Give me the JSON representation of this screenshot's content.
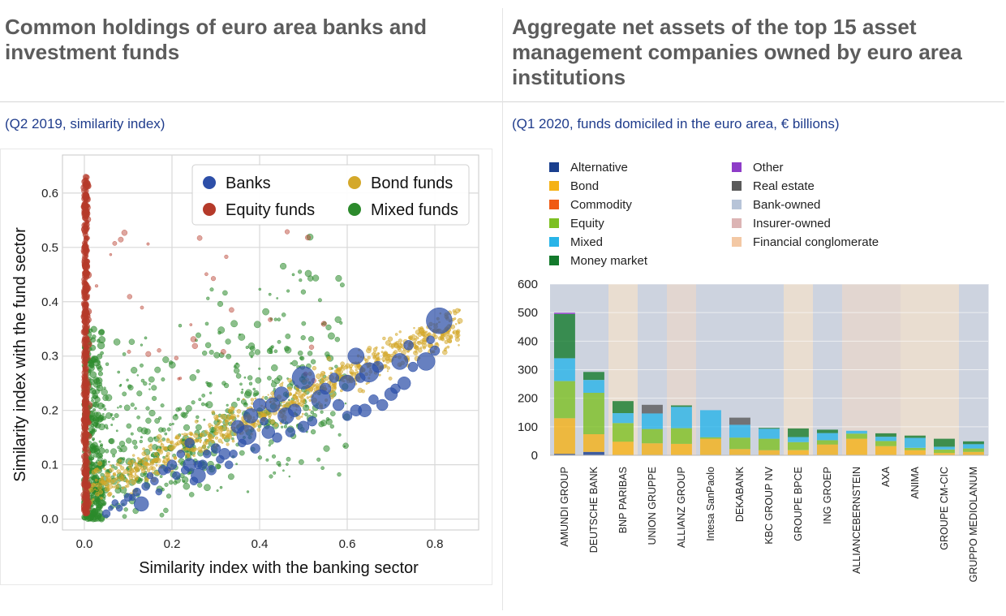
{
  "left": {
    "title": "Common holdings of euro area banks and investment funds",
    "subtitle": "(Q2 2019, similarity index)"
  },
  "right": {
    "title": "Aggregate net assets of the top 15 asset management companies owned by euro area institutions",
    "subtitle": "(Q1 2020, funds domiciled in the euro area, € billions)"
  },
  "chart_data": [
    {
      "type": "scatter",
      "xlabel": "Similarity index with the banking sector",
      "ylabel": "Similarity index with the fund sector",
      "xlim": [
        -0.05,
        0.9
      ],
      "ylim": [
        -0.02,
        0.67
      ],
      "xticks": [
        0.0,
        0.2,
        0.4,
        0.6,
        0.8
      ],
      "yticks": [
        0.0,
        0.1,
        0.2,
        0.3,
        0.4,
        0.5,
        0.6
      ],
      "grid": true,
      "legend_position": "top-right",
      "series": [
        {
          "name": "Banks",
          "color": "#2d4fa8",
          "points": [
            [
              0.81,
              0.365,
              16
            ],
            [
              0.5,
              0.26,
              14
            ],
            [
              0.54,
              0.22,
              12
            ],
            [
              0.37,
              0.155,
              12
            ],
            [
              0.65,
              0.27,
              12
            ],
            [
              0.62,
              0.3,
              10
            ],
            [
              0.6,
              0.25,
              10
            ],
            [
              0.72,
              0.29,
              10
            ],
            [
              0.78,
              0.29,
              11
            ],
            [
              0.46,
              0.19,
              10
            ],
            [
              0.43,
              0.21,
              9
            ],
            [
              0.45,
              0.23,
              9
            ],
            [
              0.42,
              0.16,
              8
            ],
            [
              0.48,
              0.2,
              8
            ],
            [
              0.35,
              0.17,
              8
            ],
            [
              0.38,
              0.19,
              9
            ],
            [
              0.4,
              0.21,
              8
            ],
            [
              0.26,
              0.08,
              9
            ],
            [
              0.24,
              0.1,
              8
            ],
            [
              0.13,
              0.028,
              9
            ],
            [
              0.32,
              0.12,
              7
            ],
            [
              0.3,
              0.13,
              6
            ],
            [
              0.29,
              0.09,
              6
            ],
            [
              0.27,
              0.1,
              6
            ],
            [
              0.24,
              0.14,
              6
            ],
            [
              0.18,
              0.09,
              6
            ],
            [
              0.2,
              0.1,
              6
            ],
            [
              0.22,
              0.12,
              5
            ],
            [
              0.16,
              0.07,
              5
            ],
            [
              0.14,
              0.06,
              5
            ],
            [
              0.12,
              0.05,
              5
            ],
            [
              0.1,
              0.04,
              5
            ],
            [
              0.08,
              0.02,
              4
            ],
            [
              0.05,
              0.01,
              5
            ],
            [
              0.7,
              0.23,
              8
            ],
            [
              0.73,
              0.25,
              8
            ],
            [
              0.68,
              0.21,
              7
            ],
            [
              0.62,
              0.2,
              7
            ],
            [
              0.6,
              0.19,
              6
            ],
            [
              0.66,
              0.22,
              6
            ],
            [
              0.55,
              0.24,
              7
            ],
            [
              0.5,
              0.17,
              7
            ],
            [
              0.57,
              0.26,
              6
            ],
            [
              0.75,
              0.28,
              6
            ],
            [
              0.74,
              0.32,
              6
            ],
            [
              0.8,
              0.31,
              6
            ],
            [
              0.79,
              0.33,
              5
            ],
            [
              0.64,
              0.2,
              8
            ],
            [
              0.58,
              0.21,
              7
            ],
            [
              0.52,
              0.18,
              6
            ],
            [
              0.44,
              0.15,
              6
            ],
            [
              0.41,
              0.18,
              5
            ],
            [
              0.36,
              0.14,
              5
            ],
            [
              0.34,
              0.12,
              5
            ],
            [
              0.31,
              0.11,
              5
            ],
            [
              0.28,
              0.12,
              5
            ],
            [
              0.26,
              0.1,
              5
            ],
            [
              0.23,
              0.09,
              5
            ],
            [
              0.21,
              0.08,
              5
            ],
            [
              0.19,
              0.09,
              4
            ],
            [
              0.17,
              0.05,
              4
            ],
            [
              0.15,
              0.08,
              4
            ],
            [
              0.11,
              0.04,
              4
            ],
            [
              0.09,
              0.03,
              4
            ],
            [
              0.07,
              0.03,
              4
            ],
            [
              0.06,
              0.02,
              3
            ],
            [
              0.47,
              0.16,
              6
            ],
            [
              0.39,
              0.13,
              6
            ],
            [
              0.33,
              0.1,
              5
            ],
            [
              0.25,
              0.07,
              5
            ],
            [
              0.71,
              0.24,
              6
            ],
            [
              0.67,
              0.28,
              7
            ],
            [
              0.63,
              0.26,
              6
            ]
          ]
        },
        {
          "name": "Bond funds",
          "color": "#d4a82a",
          "points": []
        },
        {
          "name": "Equity funds",
          "color": "#b53a2a",
          "points": []
        },
        {
          "name": "Mixed funds",
          "color": "#2c8a2c",
          "points": []
        }
      ]
    },
    {
      "type": "bar",
      "stacked": true,
      "ylim": [
        0,
        600
      ],
      "yticks": [
        0,
        100,
        200,
        300,
        400,
        500,
        600
      ],
      "legend_position": "top",
      "categories": [
        "AMUNDI GROUP",
        "DEUTSCHE BANK",
        "BNP PARIBAS",
        "UNION GRUPPE",
        "ALLIANZ GROUP",
        "Intesa SanPaolo",
        "DEKABANK",
        "KBC GROUP NV",
        "GROUPE BPCE",
        "ING GROEP",
        "ALLIANCEBERNSTEIN",
        "AXA",
        "ANIMA",
        "GROUPE CM-CIC",
        "GRUPPO MEDIOLANUM"
      ],
      "owner_type": [
        "bank",
        "bank",
        "conglomerate",
        "bank",
        "insurer",
        "bank",
        "bank",
        "bank",
        "conglomerate",
        "bank",
        "insurer",
        "insurer",
        "conglomerate",
        "conglomerate",
        "bank"
      ],
      "background": [
        {
          "name": "Bank-owned",
          "color": "#b7c4d8"
        },
        {
          "name": "Insurer-owned",
          "color": "#dcb4b4"
        },
        {
          "name": "Financial conglomerate",
          "color": "#f3c8a4"
        }
      ],
      "series": [
        {
          "name": "Alternative",
          "color": "#1a3f8e",
          "values": [
            5,
            12,
            0,
            0,
            0,
            0,
            0,
            0,
            0,
            0,
            0,
            0,
            0,
            0,
            0
          ]
        },
        {
          "name": "Bond",
          "color": "#f5b216",
          "values": [
            125,
            62,
            48,
            42,
            40,
            58,
            22,
            18,
            18,
            38,
            58,
            32,
            18,
            8,
            12
          ]
        },
        {
          "name": "Commodity",
          "color": "#f05a14",
          "values": [
            0,
            0,
            0,
            0,
            0,
            0,
            0,
            0,
            0,
            0,
            0,
            0,
            0,
            0,
            0
          ]
        },
        {
          "name": "Equity",
          "color": "#7dc022",
          "values": [
            130,
            145,
            65,
            50,
            55,
            5,
            40,
            40,
            28,
            15,
            18,
            18,
            8,
            12,
            12
          ]
        },
        {
          "name": "Mixed",
          "color": "#28b4e8",
          "values": [
            80,
            45,
            35,
            55,
            75,
            95,
            45,
            35,
            18,
            25,
            10,
            15,
            35,
            10,
            15
          ]
        },
        {
          "name": "Money market",
          "color": "#137a2c",
          "values": [
            155,
            28,
            42,
            0,
            5,
            0,
            0,
            3,
            30,
            12,
            0,
            12,
            8,
            28,
            10
          ]
        },
        {
          "name": "Other",
          "color": "#8e3cc8",
          "values": [
            5,
            0,
            0,
            0,
            0,
            0,
            0,
            0,
            0,
            0,
            0,
            0,
            0,
            0,
            0
          ]
        },
        {
          "name": "Real estate",
          "color": "#5a5a5a",
          "values": [
            0,
            0,
            0,
            30,
            0,
            0,
            25,
            0,
            0,
            0,
            0,
            0,
            0,
            0,
            0
          ]
        }
      ]
    }
  ]
}
